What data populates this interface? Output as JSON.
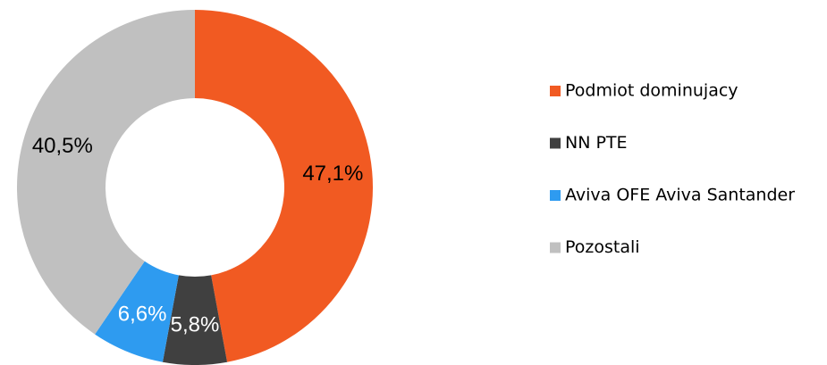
{
  "chart_data": {
    "type": "donut",
    "categories": [
      "Podmiot dominujacy",
      "NN PTE",
      "Aviva OFE Aviva Santander",
      "Pozostali"
    ],
    "values": [
      47.1,
      5.8,
      6.6,
      40.5
    ],
    "value_labels": [
      "47,1%",
      "5,8%",
      "6,6%",
      "40,5%"
    ],
    "colors": [
      "#f15a22",
      "#404040",
      "#2e9bf0",
      "#c0c0c0"
    ],
    "label_colors": [
      "#000000",
      "#ffffff",
      "#ffffff",
      "#000000"
    ],
    "legend": "right"
  }
}
